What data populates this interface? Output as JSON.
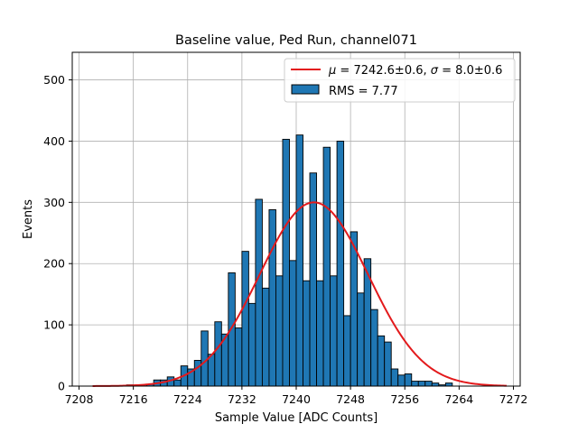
{
  "chart_data": {
    "type": "bar",
    "title": "Baseline value, Ped Run, channel071",
    "xlabel": "Sample Value [ADC Counts]",
    "ylabel": "Events",
    "xlim": [
      7207,
      7273
    ],
    "ylim": [
      0,
      545
    ],
    "xticks": [
      7208,
      7216,
      7224,
      7232,
      7240,
      7248,
      7256,
      7264,
      7272
    ],
    "yticks": [
      0,
      100,
      200,
      300,
      400,
      500
    ],
    "grid": true,
    "legend_position": "top-right",
    "colors": {
      "bars": "#1f77b4",
      "bar_edge": "#000000",
      "fit": "#e31a1c",
      "grid": "#b0b0b0"
    },
    "histogram": {
      "name": "RMS = 7.77",
      "bin_width": 1,
      "bin_start": 7215,
      "counts": [
        2,
        0,
        2,
        3,
        10,
        10,
        15,
        10,
        33,
        28,
        42,
        90,
        52,
        105,
        85,
        185,
        95,
        220,
        135,
        305,
        160,
        288,
        180,
        403,
        205,
        410,
        172,
        348,
        172,
        390,
        180,
        400,
        115,
        252,
        152,
        208,
        125,
        82,
        72,
        28,
        18,
        20,
        8,
        8,
        8,
        5,
        2,
        5
      ]
    },
    "fit": {
      "name": "μ = 7242.6±0.6, σ = 8.0±0.6",
      "legend_math": {
        "mu": "μ",
        "mu_value": " = 7242.6±0.6, ",
        "sigma": "σ",
        "sigma_value": " = 8.0±0.6"
      },
      "function": "gaussian",
      "mu": 7242.6,
      "sigma": 8.0,
      "amplitude": 300,
      "x_range": [
        7210,
        7271
      ]
    }
  }
}
